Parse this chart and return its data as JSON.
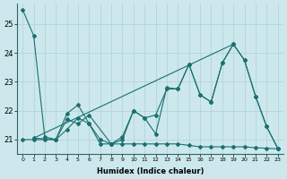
{
  "xlabel": "Humidex (Indice chaleur)",
  "xlim": [
    -0.5,
    23.5
  ],
  "ylim": [
    20.5,
    25.7
  ],
  "yticks": [
    21,
    22,
    23,
    24,
    25
  ],
  "bg_color": "#cce8ec",
  "grid_color": "#b0d0d8",
  "line_color": "#1a7070",
  "s1": [
    25.5,
    24.6,
    21.1,
    21.0,
    21.9,
    22.2,
    21.55,
    20.85,
    20.85,
    21.0,
    22.0,
    21.75,
    21.2,
    22.8,
    22.75,
    23.6,
    22.55,
    22.3,
    23.65,
    24.3,
    23.75,
    22.5,
    21.45,
    20.7
  ],
  "s2": [
    21.0,
    21.0,
    21.0,
    21.0,
    21.35,
    21.75,
    21.55,
    21.0,
    20.85,
    20.85,
    20.85,
    20.85,
    20.85,
    20.85,
    20.85,
    20.8,
    20.75,
    20.75,
    20.75,
    20.75,
    20.75,
    20.72,
    20.7,
    20.68
  ],
  "s3_x": [
    1,
    3,
    4,
    5,
    6,
    8,
    9,
    10,
    11,
    12,
    13,
    14,
    15,
    16,
    17,
    18,
    19,
    20,
    21,
    22,
    23
  ],
  "s3_y": [
    21.05,
    21.0,
    21.7,
    21.55,
    21.85,
    20.85,
    21.1,
    22.0,
    21.75,
    21.85,
    22.75,
    22.75,
    23.6,
    22.55,
    22.3,
    23.65,
    24.3,
    23.75,
    22.5,
    21.45,
    20.7
  ],
  "trend_x": [
    1,
    19
  ],
  "trend_y": [
    21.05,
    24.3
  ]
}
